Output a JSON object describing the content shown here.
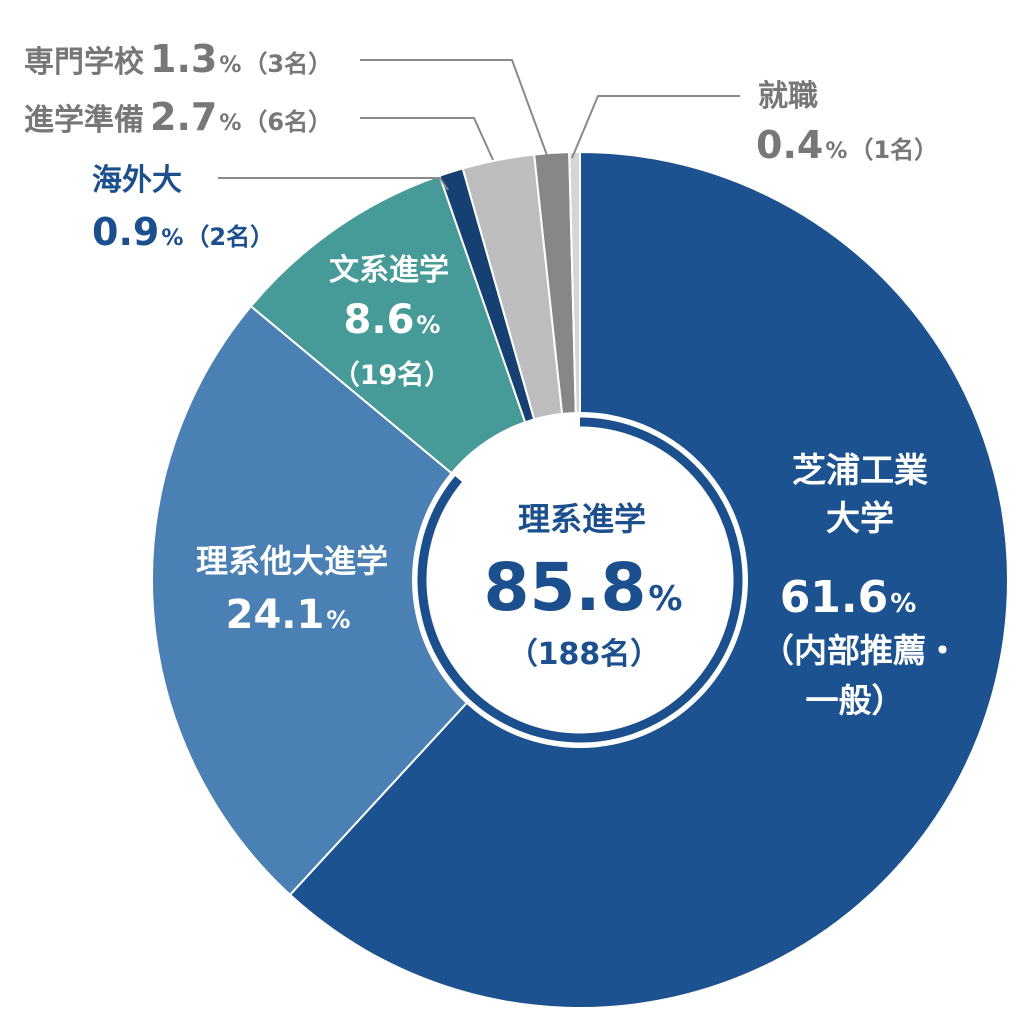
{
  "chart_data": {
    "type": "pie",
    "title": "",
    "slices": [
      {
        "label": "芝浦工業大学",
        "value": 61.6,
        "note": "（内部推薦・一般）",
        "color": "#1c5290"
      },
      {
        "label": "理系他大進学",
        "value": 24.1,
        "color": "#4a80b3"
      },
      {
        "label": "文系進学",
        "value": 8.6,
        "count": "（19名）",
        "color": "#469a97"
      },
      {
        "label": "海外大",
        "value": 0.9,
        "count": "（2名）",
        "color": "#163f72"
      },
      {
        "label": "進学準備",
        "value": 2.7,
        "count": "（6名）",
        "color": "#bebebe"
      },
      {
        "label": "専門学校",
        "value": 1.3,
        "count": "（3名）",
        "color": "#878787"
      },
      {
        "label": "就職",
        "value": 0.4,
        "count": "（1名）",
        "color": "#d5d5d5"
      }
    ],
    "center": {
      "label": "理系進学",
      "value": 85.8,
      "count": "（188名）"
    }
  },
  "labels": {
    "shibaura_line1": "芝浦工業",
    "shibaura_line2": "大学",
    "shibaura_value": "61.6",
    "shibaura_note1": "（内部推薦・",
    "shibaura_note2": "一般）",
    "rikei_label": "理系他大進学",
    "rikei_value": "24.1",
    "bunkei_label": "文系進学",
    "bunkei_value": "8.6",
    "bunkei_count": "（19名）",
    "kaigai_label": "海外大",
    "kaigai_value": "0.9",
    "kaigai_count": "（2名）",
    "junbi_label": "進学準備",
    "junbi_value": "2.7",
    "junbi_count": "（6名）",
    "senmon_label": "専門学校",
    "senmon_value": "1.3",
    "senmon_count": "（3名）",
    "shushoku_label": "就職",
    "shushoku_value": "0.4",
    "shushoku_count": "（1名）",
    "center_label": "理系進学",
    "center_value": "85.8",
    "center_count": "（188名）",
    "percent": "%"
  }
}
